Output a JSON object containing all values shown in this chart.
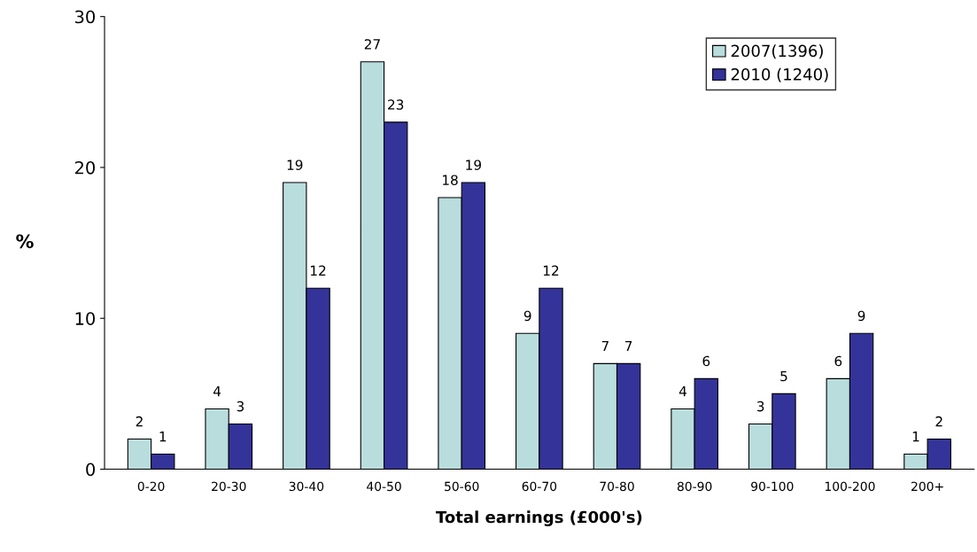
{
  "chart_data": {
    "type": "bar",
    "xlabel": "Total earnings (£000's)",
    "ylabel": "%",
    "categories": [
      "0-20",
      "20-30",
      "30-40",
      "40-50",
      "50-60",
      "60-70",
      "70-80",
      "80-90",
      "90-100",
      "100-200",
      "200+"
    ],
    "series": [
      {
        "name": "2007(1396)",
        "color": "#b9dcdc",
        "values": [
          2,
          4,
          19,
          27,
          18,
          9,
          7,
          4,
          3,
          6,
          1
        ]
      },
      {
        "name": "2010 (1240)",
        "color": "#333399",
        "values": [
          1,
          3,
          12,
          23,
          19,
          12,
          7,
          6,
          5,
          9,
          2
        ]
      }
    ],
    "ylim": [
      0,
      30
    ],
    "yticks": [
      0,
      10,
      20,
      30
    ],
    "grid": false,
    "legend": "top right",
    "data_labels": true
  }
}
